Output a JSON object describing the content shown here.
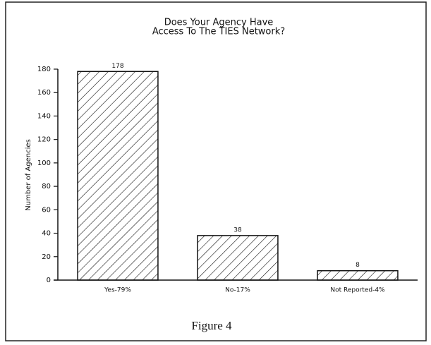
{
  "chart_data": {
    "type": "bar",
    "title": [
      "Does Your Agency Have",
      "Access To The TIES Network?"
    ],
    "ylabel": "Number of Agencies",
    "categories": [
      "Yes-79%",
      "No-17%",
      "Not Reported-4%"
    ],
    "values": [
      178,
      38,
      8
    ],
    "color": "#111111",
    "ylim": [
      0,
      180
    ],
    "yticks": [
      0,
      20,
      40,
      60,
      80,
      100,
      120,
      140,
      160,
      180
    ],
    "grid": false,
    "caption": "Figure 4"
  }
}
